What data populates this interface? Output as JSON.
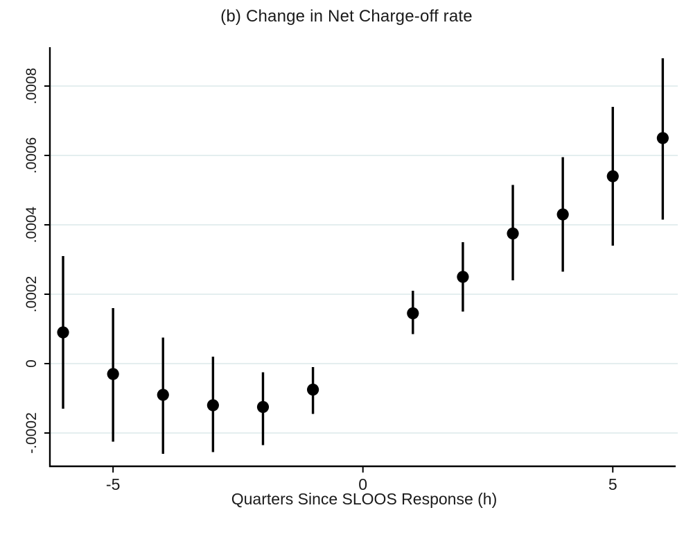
{
  "figure": {
    "title": "(b) Change in Net Charge-off rate",
    "xlabel": "Quarters Since SLOOS Response (h)"
  },
  "chart_data": {
    "type": "scatter",
    "subtype": "coefficient-plot-with-confidence-intervals",
    "title": "(b) Change in Net Charge-off rate",
    "xlabel": "Quarters Since SLOOS Response (h)",
    "ylabel": "",
    "x": [
      -6,
      -5,
      -4,
      -3,
      -2,
      -1,
      1,
      2,
      3,
      4,
      5,
      6
    ],
    "estimates": [
      9e-05,
      -3e-05,
      -9e-05,
      -0.00012,
      -0.000125,
      -7.5e-05,
      0.000145,
      0.00025,
      0.000375,
      0.00043,
      0.00054,
      0.00065
    ],
    "ci_low": [
      -0.00013,
      -0.000225,
      -0.00026,
      -0.000255,
      -0.000235,
      -0.000145,
      8.5e-05,
      0.00015,
      0.00024,
      0.000265,
      0.00034,
      0.000415
    ],
    "ci_high": [
      0.00031,
      0.00016,
      7.5e-05,
      2e-05,
      -2.5e-05,
      -1e-05,
      0.00021,
      0.00035,
      0.000515,
      0.000595,
      0.00074,
      0.00088
    ],
    "xlim": [
      -6.25,
      6.3
    ],
    "ylim": [
      -0.000296,
      0.000912
    ],
    "x_ticks": {
      "values": [
        -5,
        0,
        5
      ],
      "labels": [
        "-5",
        "0",
        "5"
      ]
    },
    "y_ticks": {
      "values": [
        -0.0002,
        0,
        0.0002,
        0.0004,
        0.0006,
        0.0008
      ],
      "labels": [
        "-.0002",
        "0",
        ".0002",
        ".0004",
        ".0006",
        ".0008"
      ]
    },
    "grid": "horizontal",
    "legend": "none",
    "colors": {
      "marker": "#000000",
      "ci": "#000000",
      "grid": "#e4eeef",
      "axis": "#000000",
      "text": "#1a1a1a",
      "background": "#ffffff"
    }
  }
}
